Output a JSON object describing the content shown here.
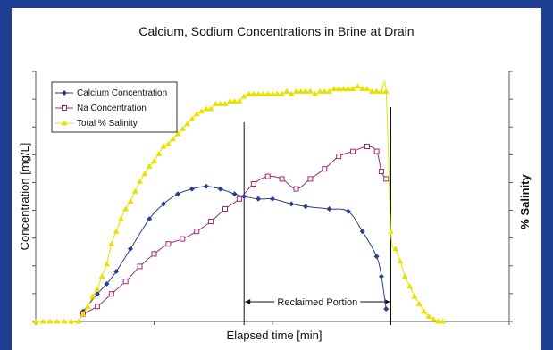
{
  "chart_data": {
    "type": "line",
    "title": "Calcium, Sodium Concentrations in Brine at Drain",
    "xlabel": "Elapsed time [min]",
    "ylabel": "Concentration [mg/L]",
    "y2label": "% Salinity",
    "annotation": "Reclaimed Portion",
    "legend_position": "top-left",
    "grid": false,
    "colors": {
      "calcium": "#2b3f8f",
      "sodium": "#a02a6e",
      "salinity": "#e9e000",
      "frame": "#1c3f93"
    },
    "xlim": [
      0,
      100
    ],
    "ylim": [
      0,
      100
    ],
    "y2lim": [
      0,
      100
    ],
    "reclaimed_start": 44,
    "reclaimed_end": 75,
    "series": [
      {
        "name": "Calcium Concentration",
        "marker": "diamond",
        "x": [
          10,
          13,
          15,
          17,
          20,
          24,
          27,
          30,
          33,
          36,
          39,
          42,
          44,
          47,
          50,
          54,
          57,
          62,
          66,
          69,
          72,
          73,
          74
        ],
        "y": [
          4,
          11,
          15,
          20,
          29,
          41,
          47,
          51,
          53,
          54,
          53,
          51,
          50,
          49,
          49,
          47,
          46,
          45,
          44,
          36,
          26,
          18,
          5
        ]
      },
      {
        "name": "Na Concentration",
        "marker": "square",
        "x": [
          10,
          13,
          16,
          19,
          22,
          25,
          28,
          31,
          34,
          37,
          40,
          43,
          46,
          49,
          52,
          55,
          58,
          61,
          64,
          67,
          70,
          72,
          73,
          74
        ],
        "y": [
          3,
          6,
          11,
          16,
          22,
          27,
          31,
          33,
          36,
          40,
          45,
          49,
          55,
          58,
          57,
          53,
          57,
          61,
          66,
          68,
          70,
          68,
          60,
          57
        ]
      },
      {
        "name": "Total % Salinity",
        "marker": "triangle",
        "x": [
          0,
          1.5,
          3,
          4.5,
          6,
          7.5,
          9,
          10,
          11,
          12,
          13,
          14,
          15,
          16,
          17,
          18,
          19,
          20,
          21,
          22,
          23,
          24,
          25,
          26,
          27,
          28,
          29,
          30,
          31,
          32,
          33,
          34,
          35,
          36,
          37,
          38,
          39,
          40,
          41,
          42,
          43,
          44,
          45,
          46,
          47,
          48,
          49,
          50,
          51,
          52,
          53,
          54,
          55,
          56,
          57,
          58,
          59,
          60,
          61,
          62,
          63,
          64,
          65,
          66,
          67,
          68,
          69,
          70,
          71,
          72,
          73,
          74,
          75,
          76,
          77,
          78,
          79,
          80,
          81,
          82,
          83,
          84,
          85,
          86
        ],
        "y": [
          0,
          0,
          0,
          0,
          0,
          0,
          0,
          3,
          6,
          10,
          13,
          18,
          23,
          31,
          36,
          41,
          45,
          48,
          52,
          56,
          59,
          62,
          64,
          67,
          70,
          71,
          73,
          75,
          77,
          79,
          81,
          83,
          84,
          85,
          85,
          87,
          87,
          87,
          88,
          88,
          88,
          90,
          91,
          91,
          91,
          91,
          91,
          91,
          91,
          91,
          92,
          91,
          92,
          92,
          92,
          92,
          91,
          92,
          92,
          92,
          93,
          93,
          93,
          93,
          93,
          94,
          93,
          93,
          92,
          92,
          92,
          92,
          36,
          29,
          24,
          18,
          14,
          10,
          7,
          4,
          2,
          1,
          0,
          0
        ]
      }
    ]
  }
}
